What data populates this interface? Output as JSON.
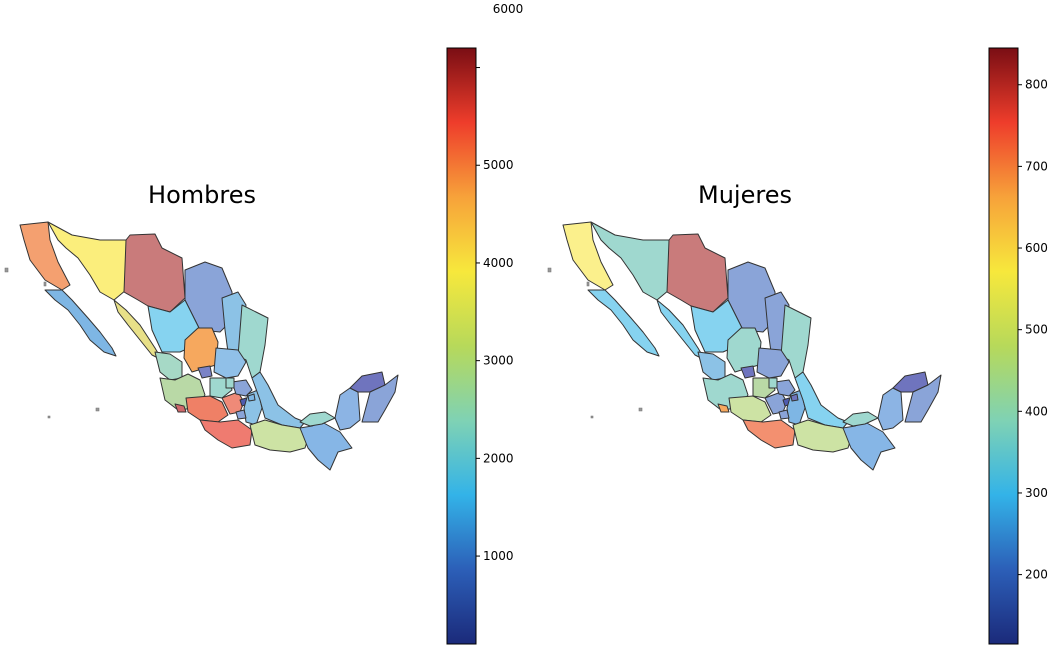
{
  "panels": [
    {
      "title": "Hombres",
      "colorbar": {
        "ticks": [
          "1000",
          "2000",
          "3000",
          "4000",
          "5000",
          "6000"
        ],
        "min": 100,
        "max": 6200
      },
      "fills": {
        "bc": "#f4a070",
        "bcs": "#7eb6e4",
        "son": "#fbee7c",
        "chih": "#c97b7b",
        "coah": "#8aa4d8",
        "nl": "#8cc2e6",
        "tamps": "#9fd8cf",
        "sin": "#e8e088",
        "dgo": "#86d3f0",
        "zac": "#f6a85e",
        "nay": "#a6d9c6",
        "jal": "#b9d9a6",
        "ags": "#7a82c6",
        "gto": "#9fd8cf",
        "sanluis": "#90c0e8",
        "colima": "#d0686a",
        "mich": "#ef8066",
        "gro": "#ef7b70",
        "mex": "#ef8a78",
        "cdmx": "#4e5cb0",
        "hgo": "#8aa4d8",
        "qro": "#9fd8cf",
        "pue": "#8cc2e6",
        "tlax": "#7eb6e4",
        "mor": "#8aa4d8",
        "ver": "#8cc2e6",
        "oax": "#cde3a4",
        "chis": "#86b6e6",
        "tab": "#9fd8cf",
        "camp": "#8cb4e4",
        "yuc": "#6f74be",
        "qroo": "#8aa4d8"
      }
    },
    {
      "title": "Mujeres",
      "colorbar": {
        "ticks": [
          "200",
          "300",
          "400",
          "500",
          "600",
          "700",
          "800"
        ],
        "min": 115,
        "max": 845
      },
      "fills": {
        "bc": "#fbf08c",
        "bcs": "#86d3f0",
        "son": "#9fd8cf",
        "chih": "#c97b7b",
        "coah": "#8aa4d8",
        "nl": "#8aa4d8",
        "tamps": "#9fd8cf",
        "sin": "#86d3f0",
        "dgo": "#86d3f0",
        "zac": "#9fd8cf",
        "nay": "#8cc2e6",
        "jal": "#9fd8cf",
        "ags": "#6f74be",
        "gto": "#b9d9a6",
        "sanluis": "#8aa4d8",
        "colima": "#f6a85e",
        "mich": "#cde3a4",
        "gro": "#f39070",
        "mex": "#8aa4d8",
        "cdmx": "#4e5cb0",
        "hgo": "#8aa4d8",
        "qro": "#9fd8cf",
        "pue": "#7eb6e4",
        "tlax": "#6f74be",
        "mor": "#8aa4d8",
        "ver": "#86d3f0",
        "oax": "#cde3a4",
        "chis": "#86b6e6",
        "tab": "#9fd8cf",
        "camp": "#8cb4e4",
        "yuc": "#6f74be",
        "qroo": "#8aa4d8"
      }
    }
  ],
  "colormap": [
    "#1b2a7a",
    "#2c5fb8",
    "#33b3e8",
    "#7fd2b4",
    "#b7d95a",
    "#f7e83c",
    "#f7a23a",
    "#ee3d2b",
    "#7a0e14"
  ]
}
